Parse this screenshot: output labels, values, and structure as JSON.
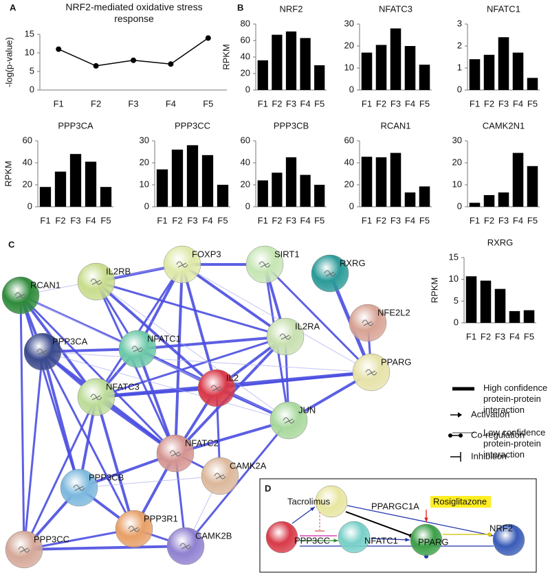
{
  "panel_labels": [
    "A",
    "B",
    "C",
    "D"
  ],
  "chart_data": [
    {
      "type": "line",
      "title": "NRF2-mediated oxidative stress response",
      "ylabel": "-log(p-value)",
      "categories": [
        "F1",
        "F2",
        "F3",
        "F4",
        "F5"
      ],
      "values": [
        11,
        6.5,
        8,
        7,
        14
      ],
      "color": "#000000",
      "ylim": [
        0,
        15
      ],
      "yticks": [
        0,
        5,
        10,
        15
      ]
    },
    {
      "type": "bar",
      "title": "NRF2",
      "ylabel": "RPKM",
      "categories": [
        "F1",
        "F2",
        "F3",
        "F4",
        "F5"
      ],
      "values": [
        36,
        67,
        71,
        63,
        30
      ],
      "color": "#000000",
      "ylim": [
        0,
        80
      ],
      "yticks": [
        0,
        20,
        40,
        60,
        80
      ]
    },
    {
      "type": "bar",
      "title": "NFATC3",
      "categories": [
        "F1",
        "F2",
        "F3",
        "F4",
        "F5"
      ],
      "values": [
        17,
        20.5,
        28,
        20,
        11.5
      ],
      "color": "#000000",
      "ylim": [
        0,
        30
      ],
      "yticks": [
        0,
        10,
        20,
        30
      ]
    },
    {
      "type": "bar",
      "title": "NFATC1",
      "categories": [
        "F1",
        "F2",
        "F3",
        "F4",
        "F5"
      ],
      "values": [
        1.4,
        1.6,
        2.4,
        1.7,
        0.55
      ],
      "color": "#000000",
      "ylim": [
        0,
        3
      ],
      "yticks": [
        0,
        1,
        2,
        3
      ]
    },
    {
      "type": "bar",
      "title": "PPP3CA",
      "ylabel": "RPKM",
      "categories": [
        "F1",
        "F2",
        "F3",
        "F4",
        "F5"
      ],
      "values": [
        18,
        32,
        48,
        41,
        18
      ],
      "color": "#000000",
      "ylim": [
        0,
        60
      ],
      "yticks": [
        0,
        20,
        40,
        60
      ]
    },
    {
      "type": "bar",
      "title": "PPP3CC",
      "categories": [
        "F1",
        "F2",
        "F3",
        "F4",
        "F5"
      ],
      "values": [
        17,
        26,
        28,
        23.5,
        10
      ],
      "color": "#000000",
      "ylim": [
        0,
        30
      ],
      "yticks": [
        0,
        10,
        20,
        30
      ]
    },
    {
      "type": "bar",
      "title": "PPP3CB",
      "categories": [
        "F1",
        "F2",
        "F3",
        "F4",
        "F5"
      ],
      "values": [
        24,
        31,
        45,
        29,
        20
      ],
      "color": "#000000",
      "ylim": [
        0,
        60
      ],
      "yticks": [
        0,
        20,
        40,
        60
      ]
    },
    {
      "type": "bar",
      "title": "RCAN1",
      "categories": [
        "F1",
        "F2",
        "F3",
        "F4",
        "F5"
      ],
      "values": [
        45.5,
        45,
        49,
        13,
        18.5
      ],
      "color": "#000000",
      "ylim": [
        0,
        60
      ],
      "yticks": [
        0,
        20,
        40,
        60
      ]
    },
    {
      "type": "bar",
      "title": "CAMK2N1",
      "categories": [
        "F1",
        "F2",
        "F3",
        "F4",
        "F5"
      ],
      "values": [
        1.8,
        5.3,
        6.5,
        24.5,
        18.5
      ],
      "color": "#000000",
      "ylim": [
        0,
        30
      ],
      "yticks": [
        0,
        10,
        20,
        30
      ]
    },
    {
      "type": "bar",
      "title": "RXRG",
      "ylabel": "RPKM",
      "categories": [
        "F1",
        "F2",
        "F3",
        "F4",
        "F5"
      ],
      "values": [
        10.7,
        9.7,
        7.8,
        2.7,
        2.9
      ],
      "color": "#000000",
      "ylim": [
        0,
        15
      ],
      "yticks": [
        0,
        5,
        10,
        15
      ]
    }
  ],
  "network": {
    "nodes": [
      {
        "label": "RCAN1",
        "color": "#2e8b3a"
      },
      {
        "label": "IL2RB",
        "color": "#c8dc8c"
      },
      {
        "label": "FOXP3",
        "color": "#dfe9a8"
      },
      {
        "label": "SIRT1",
        "color": "#c6e6b4"
      },
      {
        "label": "RXRG",
        "color": "#2a9a98"
      },
      {
        "label": "NFE2L2",
        "color": "#d8a394"
      },
      {
        "label": "IL2RA",
        "color": "#c8e0b0"
      },
      {
        "label": "PPARG",
        "color": "#e6e2a8"
      },
      {
        "label": "PPP3CA",
        "color": "#3a4a8c"
      },
      {
        "label": "NFATC1",
        "color": "#6cc8a8"
      },
      {
        "label": "NFATC3",
        "color": "#bcdc98"
      },
      {
        "label": "IL2",
        "color": "#d83848"
      },
      {
        "label": "JUN",
        "color": "#a8d89c"
      },
      {
        "label": "NFATC2",
        "color": "#d49490"
      },
      {
        "label": "CAMK2A",
        "color": "#dcb89c"
      },
      {
        "label": "PPP3CB",
        "color": "#7cb8de"
      },
      {
        "label": "PPP3R1",
        "color": "#e8a068"
      },
      {
        "label": "CAMK2B",
        "color": "#9080d0"
      },
      {
        "label": "PPP3CC",
        "color": "#d4a898"
      }
    ]
  },
  "legend": {
    "activation": "Activation",
    "coregulation": "Co-regulation",
    "inhibition": "Inhibition",
    "high": "High confidence protein-protein interaction",
    "low": "Low confidence protein-protein interaction"
  },
  "pathway": {
    "nodes": [
      {
        "label": "PPARGC1A",
        "color": "#e8e6a0"
      },
      {
        "label": "PPP3CC",
        "color": "#d83a48"
      },
      {
        "label": "NFATC1",
        "color": "#78d0c8"
      },
      {
        "label": "PPARG",
        "color": "#3ca048"
      },
      {
        "label": "NRF2",
        "color": "#3a5cb8"
      }
    ],
    "drugs": [
      "Tacrolimus",
      "Rosiglitazone"
    ]
  }
}
